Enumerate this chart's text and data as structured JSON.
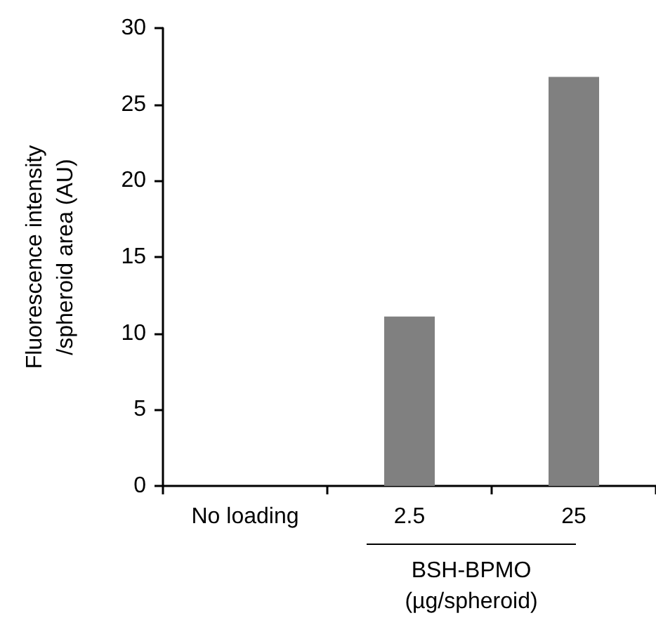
{
  "chart_data": {
    "type": "bar",
    "categories": [
      "No loading",
      "2.5",
      "25"
    ],
    "values": [
      0,
      11.1,
      26.8
    ],
    "color": "#808080",
    "xlabel": "BSH-BPMO\n(µg/spheroid)",
    "ylabel": "Fluorescence intensity\n/spheroid area (AU)",
    "ylim": [
      0,
      30
    ],
    "yticks": [
      0,
      5,
      10,
      15,
      20,
      25,
      30
    ],
    "grid": false
  }
}
